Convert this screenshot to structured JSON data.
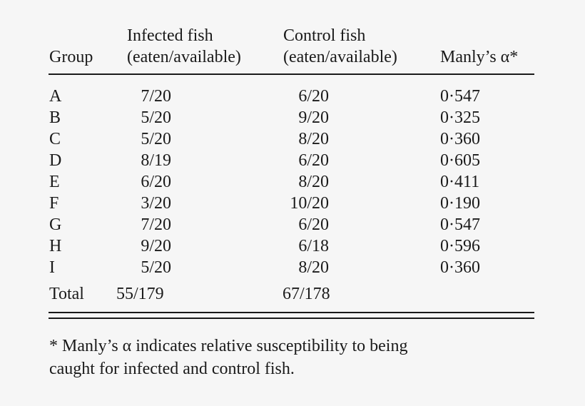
{
  "headers": {
    "group": "Group",
    "infected_line1": "Infected fish",
    "infected_line2": "(eaten/available)",
    "control_line1": "Control fish",
    "control_line2": "(eaten/available)",
    "manly": "Manly’s α*"
  },
  "rows": [
    {
      "group": "A",
      "infected": "7/20",
      "control": "6/20",
      "alpha": "0·547"
    },
    {
      "group": "B",
      "infected": "5/20",
      "control": "9/20",
      "alpha": "0·325"
    },
    {
      "group": "C",
      "infected": "5/20",
      "control": "8/20",
      "alpha": "0·360"
    },
    {
      "group": "D",
      "infected": "8/19",
      "control": "6/20",
      "alpha": "0·605"
    },
    {
      "group": "E",
      "infected": "6/20",
      "control": "8/20",
      "alpha": "0·411"
    },
    {
      "group": "F",
      "infected": "3/20",
      "control": "10/20",
      "alpha": "0·190"
    },
    {
      "group": "G",
      "infected": "7/20",
      "control": "6/20",
      "alpha": "0·547"
    },
    {
      "group": "H",
      "infected": "9/20",
      "control": "6/18",
      "alpha": "0·596"
    },
    {
      "group": "I",
      "infected": "5/20",
      "control": "8/20",
      "alpha": "0·360"
    }
  ],
  "total": {
    "label": "Total",
    "infected": "55/179",
    "control": "67/178"
  },
  "footnote": {
    "line1": "* Manly’s α indicates relative susceptibility to being",
    "line2": "caught for infected and control fish."
  }
}
